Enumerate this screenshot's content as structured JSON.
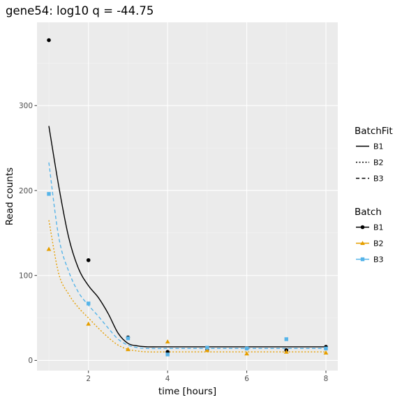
{
  "colors": {
    "panel": "#ebebeb",
    "grid_major": "#ffffff",
    "grid_minor": "#f4f4f4",
    "B1": "#000000",
    "B2": "#e69f00",
    "B3": "#56b4e9"
  },
  "chart_data": {
    "type": "scatter",
    "title": "gene54: log10 q = -44.75",
    "xlabel": "time [hours]",
    "ylabel": "Read counts",
    "xlim": [
      0.7,
      8.3
    ],
    "ylim": [
      -12,
      398
    ],
    "x_ticks": [
      2,
      4,
      6,
      8
    ],
    "x_tick_labels": [
      "2",
      "4",
      "6",
      "8"
    ],
    "y_ticks": [
      0,
      100,
      200,
      300
    ],
    "y_tick_labels": [
      "0",
      "100",
      "200",
      "300"
    ],
    "grid": true,
    "legend_position": "right",
    "legends": [
      {
        "title": "BatchFit",
        "entries": [
          {
            "label": "B1",
            "linetype": "solid"
          },
          {
            "label": "B2",
            "linetype": "dotted"
          },
          {
            "label": "B3",
            "linetype": "dashed"
          }
        ]
      },
      {
        "title": "Batch",
        "entries": [
          {
            "label": "B1",
            "color": "#000000",
            "shape": "circle"
          },
          {
            "label": "B2",
            "color": "#e69f00",
            "shape": "triangle"
          },
          {
            "label": "B3",
            "color": "#56b4e9",
            "shape": "square"
          }
        ]
      }
    ],
    "series": [
      {
        "name": "B1",
        "color": "#000000",
        "shape": "circle",
        "points": [
          [
            1,
            377
          ],
          [
            2,
            118
          ],
          [
            3,
            27
          ],
          [
            4,
            10
          ],
          [
            5,
            13
          ],
          [
            6,
            14
          ],
          [
            7,
            12
          ],
          [
            8,
            16
          ]
        ]
      },
      {
        "name": "B2",
        "color": "#e69f00",
        "shape": "triangle",
        "points": [
          [
            1,
            131
          ],
          [
            2,
            43
          ],
          [
            3,
            13
          ],
          [
            4,
            22
          ],
          [
            5,
            12
          ],
          [
            6,
            8
          ],
          [
            7,
            10
          ],
          [
            8,
            9
          ]
        ]
      },
      {
        "name": "B3",
        "color": "#56b4e9",
        "shape": "square",
        "points": [
          [
            1,
            196
          ],
          [
            2,
            67
          ],
          [
            3,
            26
          ],
          [
            4,
            7
          ],
          [
            5,
            15
          ],
          [
            6,
            14
          ],
          [
            7,
            25
          ],
          [
            8,
            14
          ]
        ]
      }
    ],
    "fits": [
      {
        "name": "B1",
        "linetype": "solid",
        "color": "#000000",
        "points": [
          [
            1,
            276
          ],
          [
            1.25,
            205
          ],
          [
            1.5,
            145
          ],
          [
            1.75,
            108
          ],
          [
            2,
            88
          ],
          [
            2.25,
            74
          ],
          [
            2.5,
            55
          ],
          [
            2.75,
            32
          ],
          [
            3,
            20
          ],
          [
            3.25,
            17
          ],
          [
            3.5,
            16
          ],
          [
            4,
            16
          ],
          [
            5,
            16
          ],
          [
            6,
            16
          ],
          [
            7,
            16
          ],
          [
            8,
            16
          ]
        ]
      },
      {
        "name": "B2",
        "linetype": "dotted",
        "color": "#e69f00",
        "points": [
          [
            1,
            165
          ],
          [
            1.25,
            102
          ],
          [
            1.5,
            78
          ],
          [
            1.75,
            62
          ],
          [
            2,
            50
          ],
          [
            2.25,
            38
          ],
          [
            2.5,
            27
          ],
          [
            2.75,
            18
          ],
          [
            3,
            13
          ],
          [
            3.25,
            11
          ],
          [
            3.5,
            10
          ],
          [
            4,
            10
          ],
          [
            5,
            10
          ],
          [
            6,
            10
          ],
          [
            7,
            10
          ],
          [
            8,
            10
          ]
        ]
      },
      {
        "name": "B3",
        "linetype": "dashed",
        "color": "#56b4e9",
        "points": [
          [
            1,
            233
          ],
          [
            1.25,
            145
          ],
          [
            1.5,
            105
          ],
          [
            1.75,
            80
          ],
          [
            2,
            65
          ],
          [
            2.25,
            52
          ],
          [
            2.5,
            38
          ],
          [
            2.75,
            25
          ],
          [
            3,
            18
          ],
          [
            3.25,
            15
          ],
          [
            3.5,
            14
          ],
          [
            4,
            14
          ],
          [
            5,
            14
          ],
          [
            6,
            14
          ],
          [
            7,
            14
          ],
          [
            8,
            14
          ]
        ]
      }
    ]
  }
}
